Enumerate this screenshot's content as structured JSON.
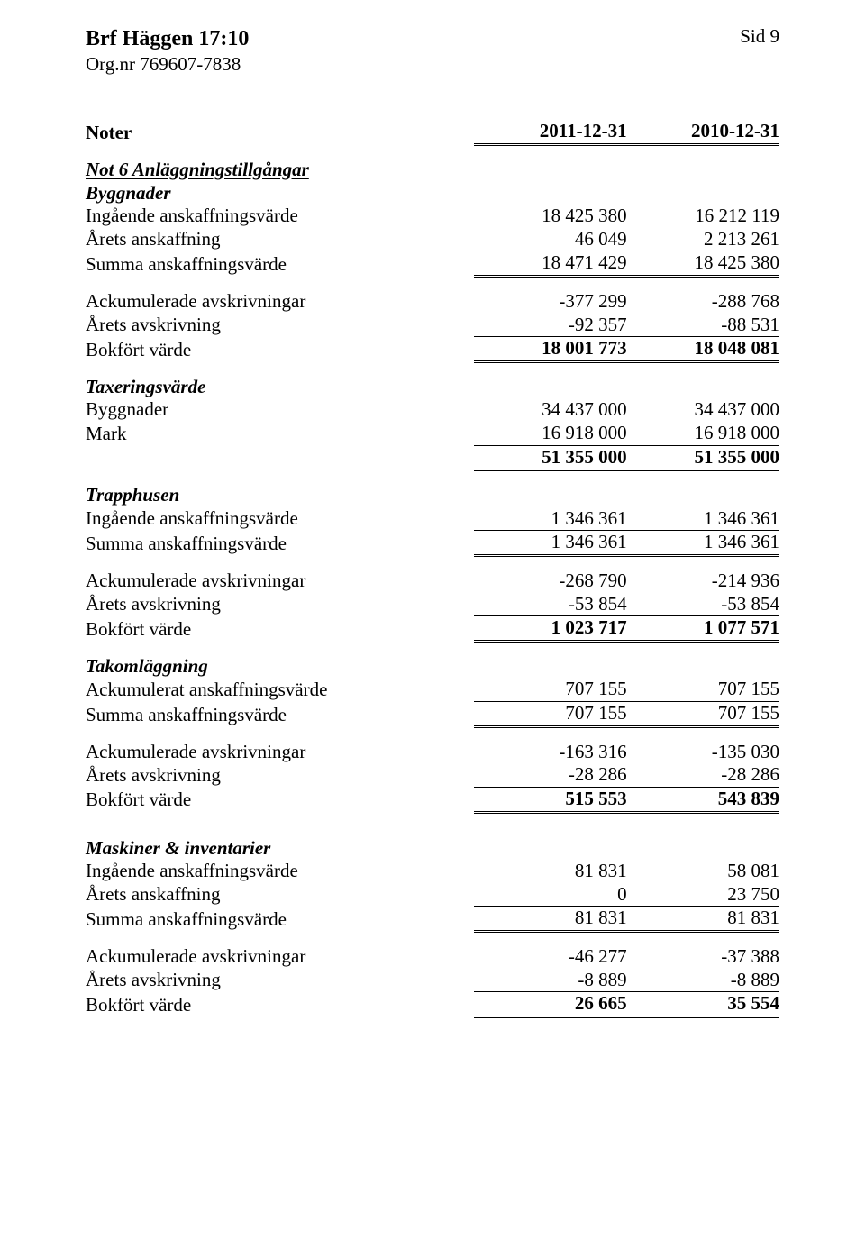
{
  "header": {
    "org_title": "Brf Häggen 17:10",
    "org_nr": "Org.nr 769607-7838",
    "page_no": "Sid 9"
  },
  "table": {
    "heading": {
      "label": "Noter",
      "c1": "2011-12-31",
      "c2": "2010-12-31"
    },
    "note_title": "Not 6 Anläggningstillgångar",
    "byggnader": {
      "title": "Byggnader",
      "rows": [
        {
          "label": "Ingående anskaffningsvärde",
          "c1": "18 425 380",
          "c2": "16 212 119"
        },
        {
          "label": "Årets anskaffning",
          "c1": "46 049",
          "c2": "2 213 261"
        }
      ],
      "sum": {
        "label": "Summa anskaffningsvärde",
        "c1": "18 471 429",
        "c2": "18 425 380"
      },
      "ack": [
        {
          "label": "Ackumulerade avskrivningar",
          "c1": "-377 299",
          "c2": "-288 768"
        },
        {
          "label": "Årets avskrivning",
          "c1": "-92 357",
          "c2": "-88 531"
        }
      ],
      "book": {
        "label": "Bokfört värde",
        "c1": "18 001 773",
        "c2": "18 048 081"
      }
    },
    "tax": {
      "title": "Taxeringsvärde",
      "rows": [
        {
          "label": "Byggnader",
          "c1": "34 437 000",
          "c2": "34 437 000"
        },
        {
          "label": "Mark",
          "c1": "16 918 000",
          "c2": "16 918 000"
        }
      ],
      "sum": {
        "label": "",
        "c1": "51 355 000",
        "c2": "51 355 000"
      }
    },
    "trapp": {
      "title": "Trapphusen",
      "rows": [
        {
          "label": "Ingående anskaffningsvärde",
          "c1": "1 346 361",
          "c2": "1 346 361"
        }
      ],
      "sum": {
        "label": "Summa anskaffningsvärde",
        "c1": "1 346 361",
        "c2": "1 346 361"
      },
      "ack": [
        {
          "label": "Ackumulerade avskrivningar",
          "c1": "-268 790",
          "c2": "-214 936"
        },
        {
          "label": "Årets avskrivning",
          "c1": "-53 854",
          "c2": "-53 854"
        }
      ],
      "book": {
        "label": "Bokfört värde",
        "c1": "1 023 717",
        "c2": "1 077 571"
      }
    },
    "tak": {
      "title": "Takomläggning",
      "rows": [
        {
          "label": "Ackumulerat anskaffningsvärde",
          "c1": "707 155",
          "c2": "707 155"
        }
      ],
      "sum": {
        "label": "Summa anskaffningsvärde",
        "c1": "707 155",
        "c2": "707 155"
      },
      "ack": [
        {
          "label": "Ackumulerade avskrivningar",
          "c1": "-163 316",
          "c2": "-135 030"
        },
        {
          "label": "Årets avskrivning",
          "c1": "-28 286",
          "c2": "-28 286"
        }
      ],
      "book": {
        "label": "Bokfört värde",
        "c1": "515 553",
        "c2": "543 839"
      }
    },
    "mask": {
      "title": "Maskiner & inventarier",
      "rows": [
        {
          "label": "Ingående anskaffningsvärde",
          "c1": "81 831",
          "c2": "58 081"
        },
        {
          "label": "Årets anskaffning",
          "c1": "0",
          "c2": "23 750"
        }
      ],
      "sum": {
        "label": "Summa anskaffningsvärde",
        "c1": "81 831",
        "c2": "81 831"
      },
      "ack": [
        {
          "label": "Ackumulerade avskrivningar",
          "c1": "-46 277",
          "c2": "-37 388"
        },
        {
          "label": "Årets avskrivning",
          "c1": "-8 889",
          "c2": "-8 889"
        }
      ],
      "book": {
        "label": "Bokfört värde",
        "c1": "26 665",
        "c2": "35 554"
      }
    }
  }
}
